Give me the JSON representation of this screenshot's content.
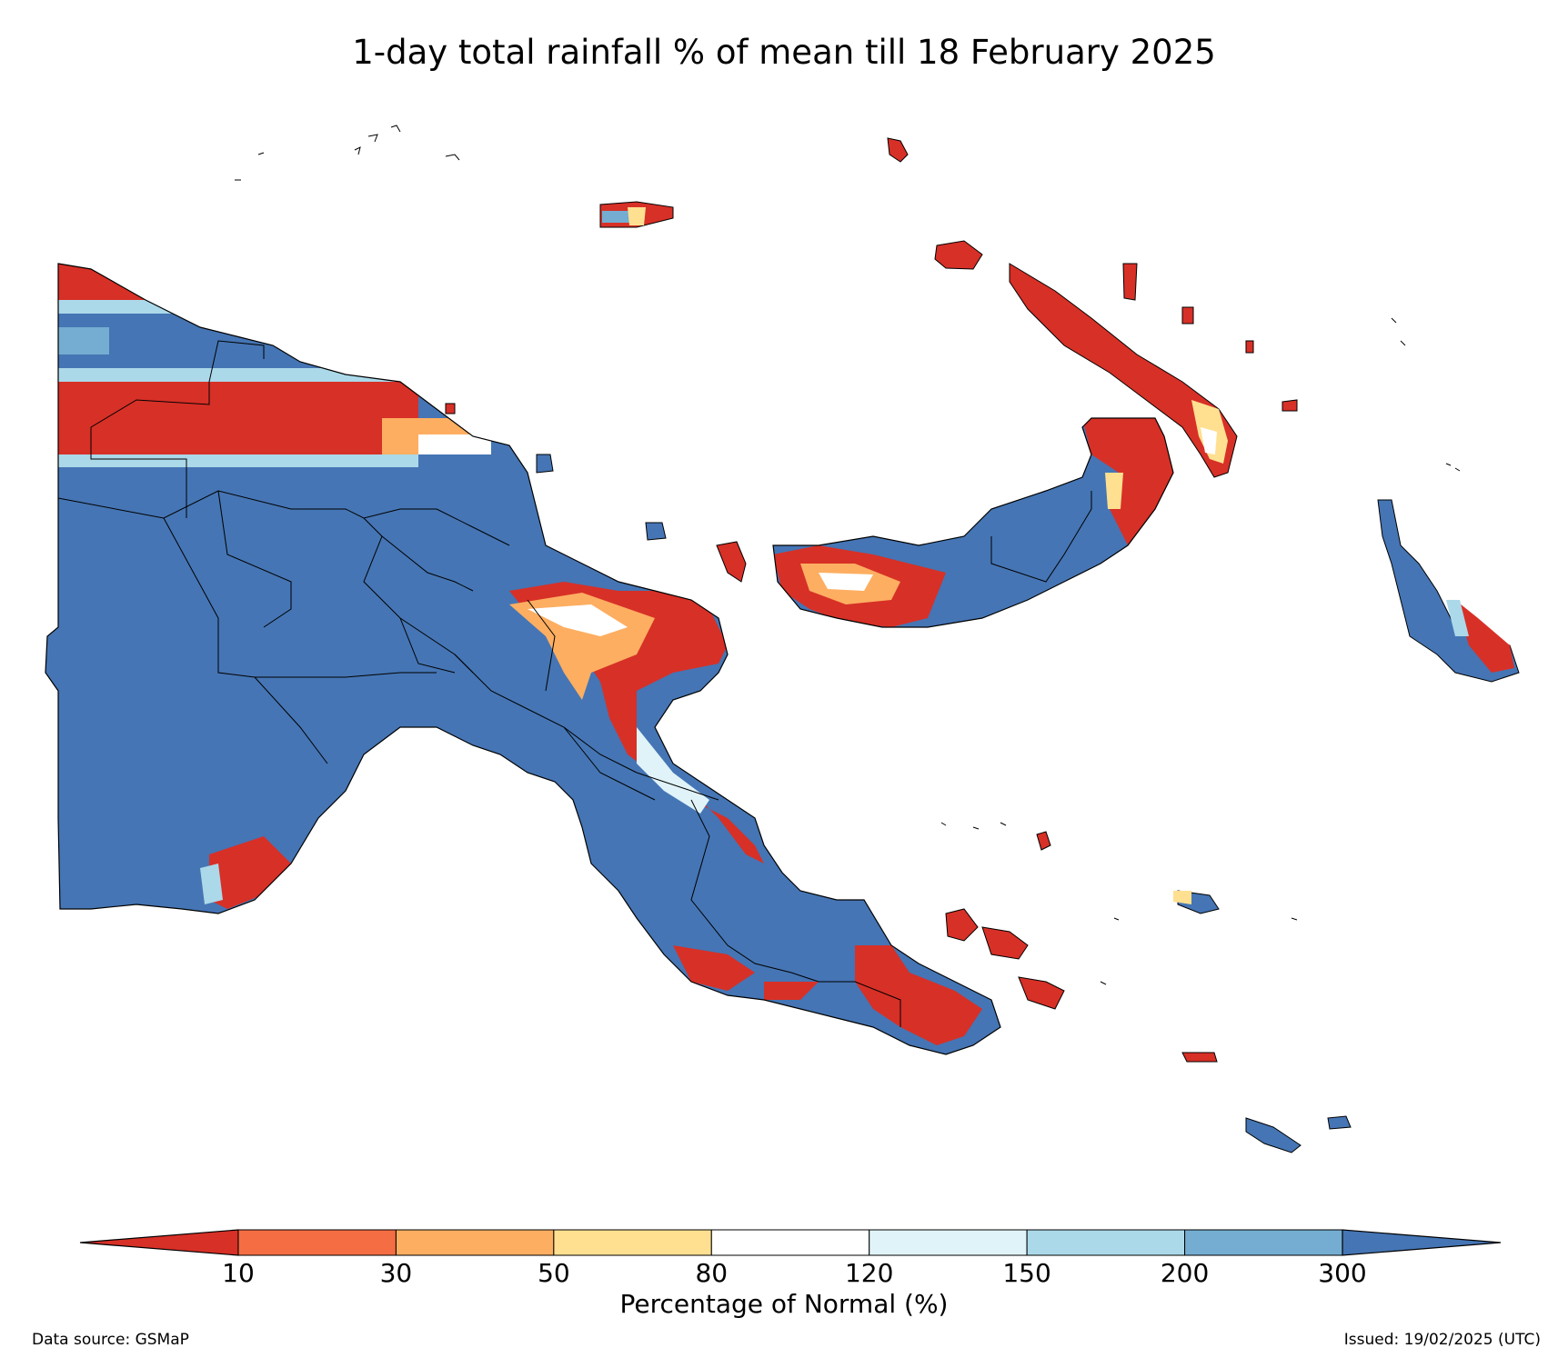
{
  "title": "1-day total rainfall % of mean till 18 February 2025",
  "colorbar": {
    "label": "Percentage of Normal (%)",
    "ticks": [
      "10",
      "30",
      "50",
      "80",
      "120",
      "150",
      "200",
      "300"
    ],
    "under_color": "#d73027",
    "over_color": "#4575b4",
    "bin_colors": [
      "#f46d43",
      "#fdae61",
      "#fee090",
      "#ffffff",
      "#e0f3f8",
      "#abd9e9",
      "#74add1"
    ]
  },
  "legend_colors": {
    "below_10": "#d73027",
    "above_300": "#4575b4"
  },
  "footer": {
    "data_source": "Data source: GSMaP",
    "issued": "Issued: 19/02/2025 (UTC)"
  }
}
